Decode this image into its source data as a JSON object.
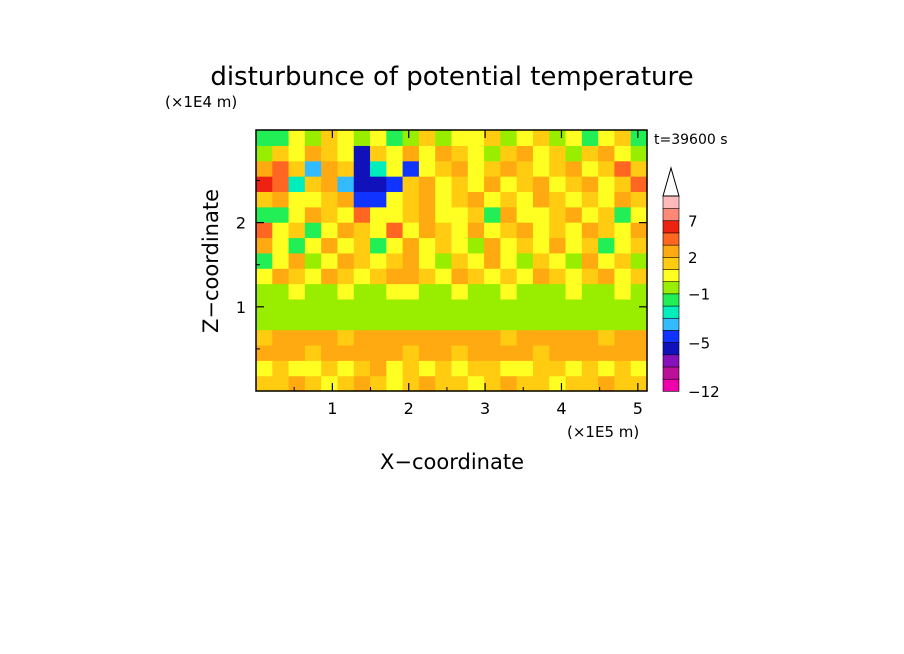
{
  "chart_data": {
    "type": "heatmap",
    "title": "disturbunce of potential temperature",
    "time_label": "t=39600 s",
    "xlabel": "X−coordinate",
    "ylabel": "Z−coordinate",
    "x_multiplier_label": "(×1E5 m)",
    "y_multiplier_label": "(×1E4 m)",
    "xlim": [
      0,
      5.12
    ],
    "ylim": [
      0,
      3.1
    ],
    "x_ticks": [
      {
        "value": 1,
        "label": "1"
      },
      {
        "value": 2,
        "label": "2"
      },
      {
        "value": 3,
        "label": "3"
      },
      {
        "value": 4,
        "label": "4"
      },
      {
        "value": 5,
        "label": "5"
      }
    ],
    "y_ticks": [
      {
        "value": 1,
        "label": "1"
      },
      {
        "value": 2,
        "label": "2"
      }
    ],
    "colorbar": {
      "levels": [
        -12,
        -10,
        -8,
        -6,
        -5,
        -4,
        -3,
        -2,
        -1,
        0,
        1,
        2,
        3,
        5,
        7,
        9,
        11
      ],
      "colors": [
        "#ee00aa",
        "#bb1199",
        "#8811bb",
        "#1111bb",
        "#1133ff",
        "#33bbff",
        "#00eebb",
        "#22ee55",
        "#99ee00",
        "#ffff22",
        "#ffcc11",
        "#ffaa11",
        "#ff6622",
        "#ee2211",
        "#ff8877",
        "#ffbbbb"
      ],
      "tick_labels": [
        {
          "value": -12,
          "label": "−12"
        },
        {
          "value": -5,
          "label": "−5"
        },
        {
          "value": -1,
          "label": "−1"
        },
        {
          "value": 2,
          "label": "2"
        },
        {
          "value": 7,
          "label": "7"
        }
      ],
      "extend": "max"
    },
    "field": {
      "description_free": true,
      "rows_bottom_to_top": [
        [
          1,
          1,
          2,
          1,
          0.5,
          1,
          2,
          1,
          0.5,
          1,
          2,
          1,
          1,
          0.5,
          1,
          2,
          1,
          1,
          0.5,
          1,
          1,
          2,
          1,
          1
        ],
        [
          0.5,
          1,
          0.5,
          0.5,
          1,
          0.5,
          1,
          2,
          0.5,
          1,
          0.5,
          1,
          0.5,
          1,
          1,
          0.5,
          0.5,
          1,
          1,
          0.5,
          1,
          0.5,
          1,
          0.5
        ],
        [
          2,
          2,
          2,
          1,
          2,
          2,
          2,
          2,
          2,
          1,
          2,
          2,
          1,
          2,
          2,
          2,
          2,
          1,
          2,
          2,
          2,
          2,
          2,
          2
        ],
        [
          1,
          2,
          2,
          2,
          2,
          1,
          2,
          2,
          2,
          2,
          2,
          2,
          2,
          2,
          2,
          1,
          2,
          2,
          2,
          2,
          2,
          1,
          2,
          2
        ],
        [
          -0.5,
          -0.5,
          -0.5,
          -0.5,
          -0.5,
          -0.5,
          -0.5,
          -0.5,
          -0.5,
          -0.5,
          -0.5,
          -0.5,
          -0.5,
          -0.5,
          -0.5,
          -0.5,
          -0.5,
          -0.5,
          -0.5,
          -0.5,
          -0.5,
          -0.5,
          -0.5,
          -0.5
        ],
        [
          -0.5,
          -1,
          -0.5,
          -0.5,
          -0.5,
          -0.5,
          -0.5,
          -0.5,
          -0.5,
          -0.5,
          -0.5,
          -0.5,
          -0.5,
          -0.5,
          -0.5,
          -0.5,
          -0.5,
          -0.5,
          -0.5,
          -0.5,
          -0.5,
          -0.5,
          -0.5,
          -0.5
        ],
        [
          -0.5,
          -0.5,
          0.5,
          -0.5,
          -0.5,
          0.5,
          -0.5,
          -0.5,
          0.5,
          0.5,
          -0.5,
          -0.5,
          0.5,
          -0.5,
          -0.5,
          0.5,
          -0.5,
          -0.5,
          -0.5,
          0.5,
          -0.5,
          -0.5,
          0.5,
          -0.5
        ],
        [
          0.5,
          2,
          1,
          0.5,
          2,
          1,
          0.5,
          1,
          2,
          2,
          1,
          0.5,
          2,
          1,
          0.5,
          1,
          0.5,
          2,
          1,
          0.5,
          1,
          2,
          0.5,
          1
        ],
        [
          -1.5,
          0.5,
          2,
          -0.5,
          0.5,
          2,
          1,
          0.5,
          1,
          2,
          0.5,
          -0.5,
          1,
          0.5,
          2,
          0.5,
          -0.5,
          1,
          0.5,
          -0.5,
          2,
          0.5,
          1,
          -0.5
        ],
        [
          2,
          0.5,
          -1.5,
          0.5,
          2,
          0.5,
          1,
          -1.5,
          0.5,
          2,
          0.5,
          1,
          0.5,
          -0.5,
          2,
          0.5,
          1,
          0.5,
          2,
          0.5,
          1,
          -1.5,
          0.5,
          1
        ],
        [
          3,
          0.5,
          1,
          -1.5,
          0.5,
          2,
          1,
          0.5,
          3,
          0.5,
          2,
          1,
          0.5,
          2,
          0.5,
          1,
          2,
          0.5,
          1,
          0.5,
          2,
          1,
          0.5,
          2
        ],
        [
          -1.5,
          -1.5,
          0.5,
          2,
          1,
          0.5,
          3,
          0.5,
          0.5,
          1,
          2,
          0.5,
          0.5,
          1,
          -1.5,
          2,
          0.5,
          0.5,
          1,
          2,
          0.5,
          1,
          -1.5,
          0.5
        ],
        [
          1,
          2,
          0.5,
          0.5,
          1,
          2,
          -4.5,
          -4.5,
          0.5,
          1,
          2,
          0.5,
          1,
          2,
          0.5,
          1,
          0.5,
          2,
          1,
          0.5,
          1,
          0.5,
          2,
          1
        ],
        [
          5,
          3,
          -2.5,
          1,
          2,
          -3.5,
          -5.5,
          -5.5,
          -4.5,
          1,
          2,
          0.5,
          1,
          0.5,
          2,
          0.5,
          1,
          2,
          0.5,
          1,
          2,
          0.5,
          1,
          4
        ],
        [
          2,
          3,
          1,
          -3.5,
          2,
          1,
          -5.5,
          -2.5,
          0.5,
          -4.5,
          0.5,
          1,
          2,
          0.5,
          1,
          2,
          1,
          0.5,
          1,
          2,
          0.5,
          1,
          3,
          1
        ],
        [
          -0.5,
          1,
          0.5,
          2,
          1,
          0.5,
          -5.5,
          1,
          0.5,
          2,
          0.5,
          2,
          1,
          0.5,
          -0.5,
          1,
          2,
          0.5,
          1,
          -0.5,
          1,
          2,
          0.5,
          -0.5
        ],
        [
          -1.5,
          -1.5,
          0.5,
          -0.5,
          1,
          0.5,
          -0.5,
          0.5,
          -1.5,
          -0.5,
          1,
          -0.5,
          0.5,
          0.5,
          1,
          -0.5,
          0.5,
          1,
          -0.5,
          0.5,
          -1.5,
          0.5,
          1,
          -1.5
        ]
      ]
    }
  }
}
